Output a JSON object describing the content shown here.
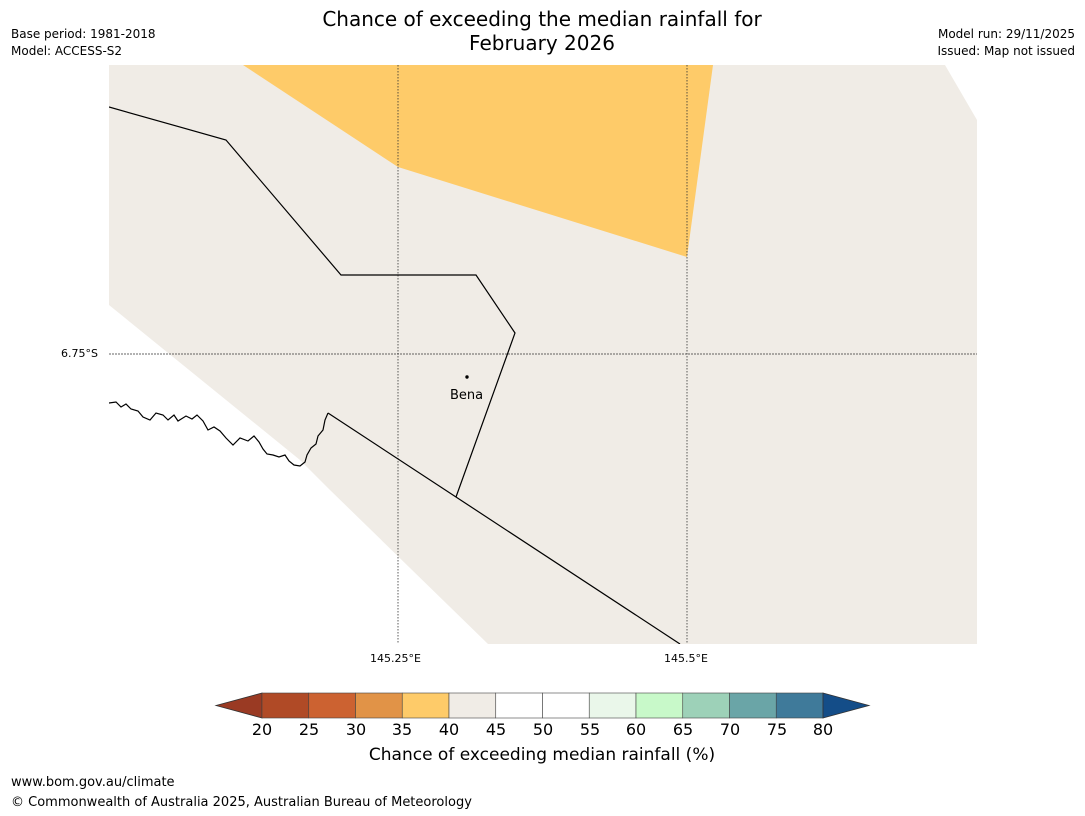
{
  "header": {
    "title_line1": "Chance of exceeding the median rainfall for",
    "title_line2": "February 2026",
    "base_period": "Base period: 1981-2018",
    "model": "Model: ACCESS-S2",
    "model_run": "Model run: 29/11/2025",
    "issued": "Issued: Map not issued"
  },
  "map": {
    "lat_label": "6.75°S",
    "lon_labels": [
      "145.25°E",
      "145.5°E"
    ],
    "place": "Bena",
    "colors": {
      "background_category": "#f0ece6",
      "orange_category": "#fecb69",
      "boundary": "#000000",
      "gridline": "#333333"
    }
  },
  "colorbar": {
    "ticks": [
      "20",
      "25",
      "30",
      "35",
      "40",
      "45",
      "50",
      "55",
      "60",
      "65",
      "70",
      "75",
      "80"
    ],
    "colors": [
      "#9a3a23",
      "#b04a26",
      "#cc6231",
      "#e19347",
      "#fecb69",
      "#f0ece6",
      "#ffffff",
      "#ffffff",
      "#eaf7ea",
      "#c8f9c9",
      "#9dd1b8",
      "#6aa5a7",
      "#3f7a9a",
      "#144d88"
    ],
    "label": "Chance of exceeding median rainfall (%)"
  },
  "footer": {
    "website": "www.bom.gov.au/climate",
    "copyright": "© Commonwealth of Australia 2025, Australian Bureau of Meteorology"
  }
}
